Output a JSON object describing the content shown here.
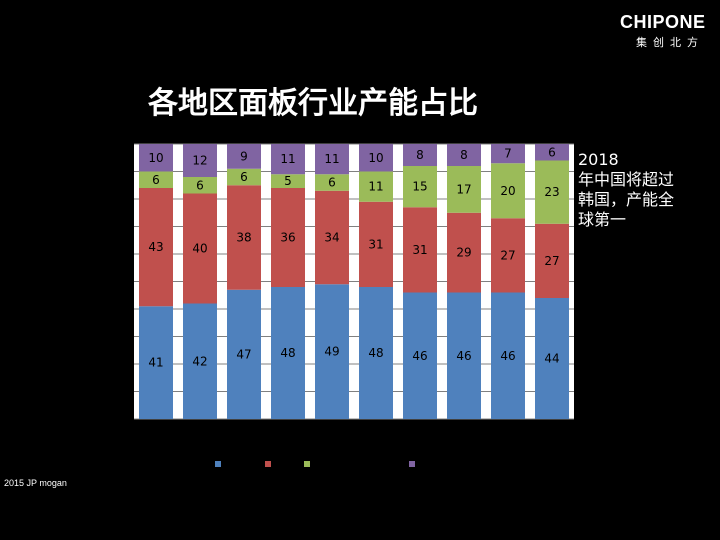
{
  "logo": {
    "word": "CHIPONE",
    "sub": "集创北方"
  },
  "title": "各地区面板行业产能占比",
  "note": {
    "lines": [
      "2018",
      "年中国将超过",
      "韩国，产能全",
      "球第一"
    ]
  },
  "source": "2015 JP mogan",
  "chart_data": {
    "type": "bar",
    "stacked": true,
    "categories": [
      "",
      "",
      "",
      "",
      "",
      "",
      "",
      "",
      "",
      ""
    ],
    "series": [
      {
        "color": "#4f81bd",
        "values": [
          41,
          42,
          47,
          48,
          49,
          48,
          46,
          46,
          46,
          44
        ]
      },
      {
        "color": "#c0504d",
        "values": [
          43,
          40,
          38,
          36,
          34,
          31,
          31,
          29,
          27,
          27
        ]
      },
      {
        "color": "#9bbb59",
        "values": [
          6,
          6,
          6,
          5,
          6,
          11,
          15,
          17,
          20,
          23
        ]
      },
      {
        "color": "#8064a2",
        "values": [
          10,
          12,
          9,
          11,
          11,
          10,
          8,
          8,
          7,
          6
        ]
      }
    ],
    "ylim": [
      0,
      100
    ],
    "grid": true,
    "legend": "bottom",
    "plot_bg": "#ffffff"
  }
}
